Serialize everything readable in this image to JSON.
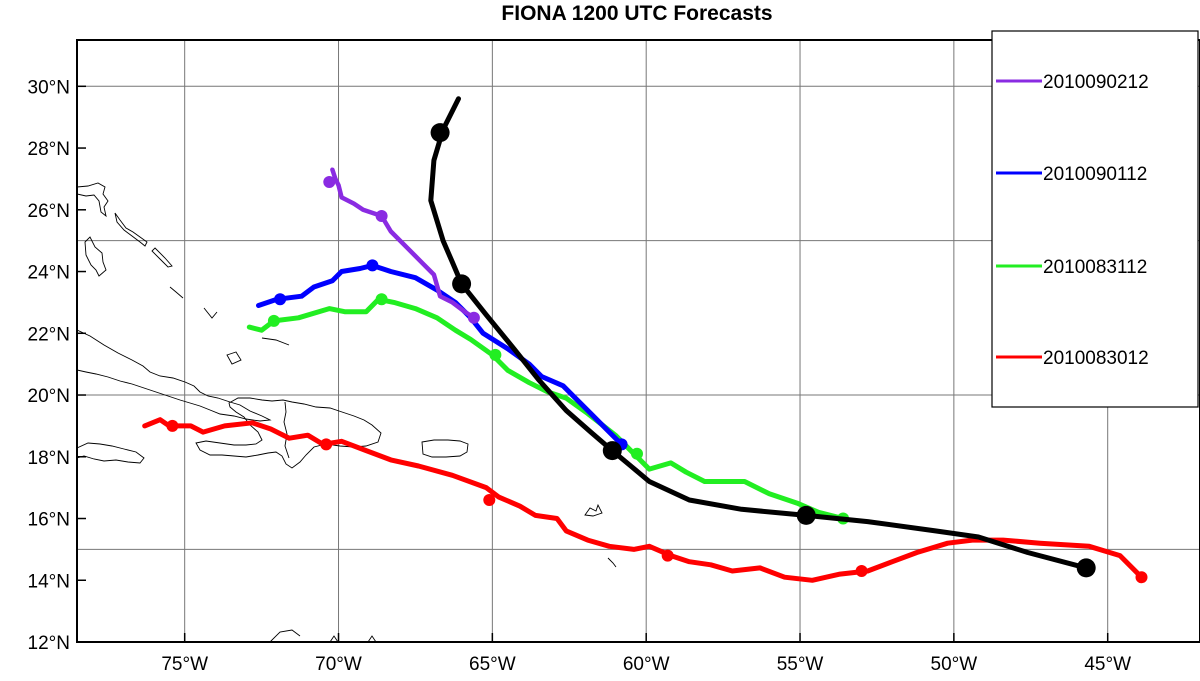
{
  "chart_data": {
    "type": "line",
    "title": "FIONA 1200 UTC Forecasts",
    "x_axis": {
      "range": [
        -78.5,
        -42
      ],
      "ticks": [
        -75,
        -70,
        -65,
        -60,
        -55,
        -50,
        -45
      ],
      "tick_labels": [
        "75°W",
        "70°W",
        "65°W",
        "60°W",
        "55°W",
        "50°W",
        "45°W"
      ]
    },
    "y_axis": {
      "range": [
        12,
        31.5
      ],
      "ticks": [
        12,
        14,
        16,
        18,
        20,
        22,
        24,
        26,
        28,
        30
      ],
      "tick_labels": [
        "12°N",
        "14°N",
        "16°N",
        "18°N",
        "20°N",
        "22°N",
        "24°N",
        "26°N",
        "28°N",
        "30°N"
      ]
    },
    "gridlines_x": [
      -75,
      -70,
      -65,
      -60,
      -55,
      -50,
      -45
    ],
    "gridlines_y": [
      15,
      20,
      25,
      30
    ],
    "legend_position": "top-right",
    "series": [
      {
        "name": "2010090212",
        "color": "#8a2be2",
        "width": 4.5,
        "points": [
          [
            -70.2,
            27.3
          ],
          [
            -70.1,
            27.0
          ],
          [
            -70.0,
            26.8
          ],
          [
            -69.9,
            26.4
          ],
          [
            -69.5,
            26.2
          ],
          [
            -69.2,
            26.0
          ],
          [
            -68.9,
            25.9
          ],
          [
            -68.6,
            25.8
          ],
          [
            -68.3,
            25.3
          ],
          [
            -67.8,
            24.8
          ],
          [
            -67.3,
            24.3
          ],
          [
            -66.9,
            23.9
          ],
          [
            -66.7,
            23.2
          ],
          [
            -66.3,
            23.0
          ],
          [
            -65.9,
            22.7
          ],
          [
            -65.6,
            22.5
          ]
        ],
        "markers": [
          [
            -70.3,
            26.9
          ],
          [
            -68.6,
            25.8
          ],
          [
            -65.6,
            22.5
          ]
        ]
      },
      {
        "name": "2010090112",
        "color": "#0000ff",
        "width": 5,
        "points": [
          [
            -72.6,
            22.9
          ],
          [
            -72.0,
            23.1
          ],
          [
            -71.2,
            23.2
          ],
          [
            -70.8,
            23.5
          ],
          [
            -70.2,
            23.7
          ],
          [
            -69.9,
            24.0
          ],
          [
            -69.3,
            24.1
          ],
          [
            -68.9,
            24.2
          ],
          [
            -68.3,
            24.0
          ],
          [
            -67.5,
            23.8
          ],
          [
            -66.8,
            23.4
          ],
          [
            -66.2,
            23.0
          ],
          [
            -65.7,
            22.5
          ],
          [
            -65.3,
            22.0
          ],
          [
            -64.5,
            21.5
          ],
          [
            -63.8,
            21.0
          ],
          [
            -63.4,
            20.6
          ],
          [
            -62.7,
            20.3
          ],
          [
            -62.3,
            19.9
          ],
          [
            -61.8,
            19.4
          ],
          [
            -61.3,
            18.9
          ],
          [
            -60.8,
            18.4
          ]
        ],
        "markers": [
          [
            -71.9,
            23.1
          ],
          [
            -68.9,
            24.2
          ],
          [
            -60.8,
            18.4
          ]
        ]
      },
      {
        "name": "2010083112",
        "color": "#22ee22",
        "width": 5,
        "points": [
          [
            -72.9,
            22.2
          ],
          [
            -72.5,
            22.1
          ],
          [
            -72.1,
            22.4
          ],
          [
            -71.3,
            22.5
          ],
          [
            -70.3,
            22.8
          ],
          [
            -69.8,
            22.7
          ],
          [
            -69.1,
            22.7
          ],
          [
            -68.7,
            23.1
          ],
          [
            -68.2,
            23.0
          ],
          [
            -67.5,
            22.8
          ],
          [
            -66.8,
            22.5
          ],
          [
            -66.2,
            22.1
          ],
          [
            -65.7,
            21.8
          ],
          [
            -65.0,
            21.3
          ],
          [
            -64.5,
            20.8
          ],
          [
            -63.8,
            20.4
          ],
          [
            -63.2,
            20.1
          ],
          [
            -62.6,
            19.9
          ],
          [
            -61.9,
            19.4
          ],
          [
            -61.0,
            18.7
          ],
          [
            -60.4,
            18.1
          ],
          [
            -59.9,
            17.6
          ],
          [
            -59.2,
            17.8
          ],
          [
            -58.7,
            17.5
          ],
          [
            -58.1,
            17.2
          ],
          [
            -56.8,
            17.2
          ],
          [
            -56.0,
            16.8
          ],
          [
            -55.1,
            16.5
          ],
          [
            -54.4,
            16.2
          ],
          [
            -53.6,
            16.0
          ]
        ],
        "markers": [
          [
            -72.1,
            22.4
          ],
          [
            -68.6,
            23.1
          ],
          [
            -64.9,
            21.3
          ],
          [
            -60.3,
            18.1
          ],
          [
            -53.6,
            16.0
          ]
        ]
      },
      {
        "name": "2010083012",
        "color": "#ff0000",
        "width": 5,
        "points": [
          [
            -76.3,
            19.0
          ],
          [
            -75.8,
            19.2
          ],
          [
            -75.5,
            19.0
          ],
          [
            -74.8,
            19.0
          ],
          [
            -74.4,
            18.8
          ],
          [
            -73.7,
            19.0
          ],
          [
            -72.8,
            19.1
          ],
          [
            -72.2,
            18.9
          ],
          [
            -71.6,
            18.6
          ],
          [
            -71.0,
            18.7
          ],
          [
            -70.5,
            18.4
          ],
          [
            -69.9,
            18.5
          ],
          [
            -69.1,
            18.2
          ],
          [
            -68.3,
            17.9
          ],
          [
            -67.4,
            17.7
          ],
          [
            -66.3,
            17.4
          ],
          [
            -65.2,
            17.0
          ],
          [
            -64.8,
            16.7
          ],
          [
            -64.1,
            16.4
          ],
          [
            -63.6,
            16.1
          ],
          [
            -62.9,
            16.0
          ],
          [
            -62.6,
            15.6
          ],
          [
            -61.9,
            15.3
          ],
          [
            -61.2,
            15.1
          ],
          [
            -60.4,
            15.0
          ],
          [
            -59.9,
            15.1
          ],
          [
            -59.2,
            14.8
          ],
          [
            -58.6,
            14.6
          ],
          [
            -57.9,
            14.5
          ],
          [
            -57.2,
            14.3
          ],
          [
            -56.3,
            14.4
          ],
          [
            -55.5,
            14.1
          ],
          [
            -54.6,
            14.0
          ],
          [
            -53.7,
            14.2
          ],
          [
            -52.8,
            14.3
          ],
          [
            -52.0,
            14.6
          ],
          [
            -51.2,
            14.9
          ],
          [
            -50.2,
            15.2
          ],
          [
            -49.4,
            15.3
          ],
          [
            -48.4,
            15.3
          ],
          [
            -47.2,
            15.2
          ],
          [
            -45.6,
            15.1
          ],
          [
            -44.6,
            14.8
          ],
          [
            -43.9,
            14.1
          ]
        ],
        "markers": [
          [
            -75.4,
            19.0
          ],
          [
            -70.4,
            18.4
          ],
          [
            -65.1,
            16.6
          ],
          [
            -59.3,
            14.8
          ],
          [
            -53.0,
            14.3
          ],
          [
            -43.9,
            14.1
          ]
        ]
      },
      {
        "name": "",
        "color": "#000000",
        "width": 5,
        "points": [
          [
            -66.1,
            29.6
          ],
          [
            -66.6,
            28.6
          ],
          [
            -66.9,
            27.6
          ],
          [
            -67.0,
            26.3
          ],
          [
            -66.6,
            25.0
          ],
          [
            -66.3,
            24.3
          ],
          [
            -66.0,
            23.6
          ],
          [
            -65.2,
            22.6
          ],
          [
            -64.3,
            21.5
          ],
          [
            -63.5,
            20.5
          ],
          [
            -62.6,
            19.5
          ],
          [
            -61.8,
            18.8
          ],
          [
            -61.1,
            18.2
          ],
          [
            -60.5,
            17.7
          ],
          [
            -59.9,
            17.2
          ],
          [
            -58.6,
            16.6
          ],
          [
            -56.9,
            16.3
          ],
          [
            -54.8,
            16.1
          ],
          [
            -52.8,
            15.9
          ],
          [
            -50.6,
            15.6
          ],
          [
            -49.2,
            15.4
          ],
          [
            -47.6,
            14.9
          ],
          [
            -45.7,
            14.4
          ]
        ],
        "markers": [
          [
            -66.7,
            28.5
          ],
          [
            -66.0,
            23.6
          ],
          [
            -61.1,
            18.2
          ],
          [
            -54.8,
            16.1
          ],
          [
            -45.7,
            14.4
          ]
        ]
      }
    ],
    "legend_entries": [
      "2010090212",
      "2010090112",
      "2010083112",
      "2010083012"
    ]
  }
}
